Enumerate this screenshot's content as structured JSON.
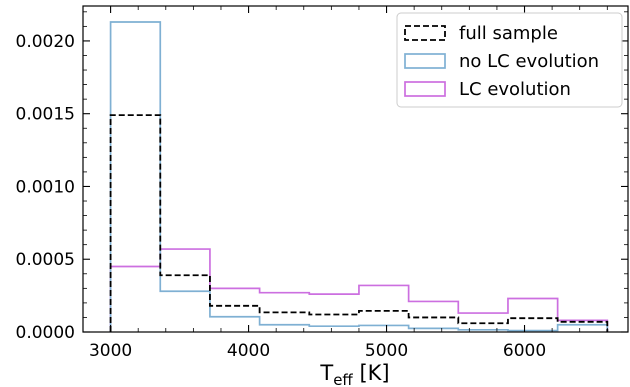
{
  "chart_data": {
    "type": "histogram-step",
    "xlabel_main": "T",
    "xlabel_sub": "eff",
    "xlabel_unit": " [K]",
    "ylabel": "",
    "xlim": [
      2800,
      6750
    ],
    "ylim": [
      0,
      0.00224
    ],
    "x_ticks": [
      3000,
      4000,
      5000,
      6000
    ],
    "x_tick_labels": [
      "3000",
      "4000",
      "5000",
      "6000"
    ],
    "y_ticks": [
      0,
      0.0005,
      0.001,
      0.0015,
      0.002
    ],
    "y_tick_labels": [
      "0.0000",
      "0.0005",
      "0.0010",
      "0.0015",
      "0.0020"
    ],
    "bin_edges": [
      3000,
      3360,
      3720,
      4080,
      4440,
      4800,
      5160,
      5520,
      5880,
      6240,
      6600
    ],
    "legend_position": "top-right",
    "series": [
      {
        "name": "full sample",
        "style": "dashed",
        "color": "#000000",
        "values": [
          0.00149,
          0.00039,
          0.00018,
          0.000135,
          0.00012,
          0.000145,
          0.0001,
          6e-05,
          9.5e-05,
          7e-05
        ]
      },
      {
        "name": "no LC evolution",
        "style": "solid",
        "color": "#7fb0d3",
        "values": [
          0.00213,
          0.00028,
          0.000105,
          5e-05,
          4e-05,
          4.5e-05,
          2.5e-05,
          1.5e-05,
          1e-05,
          5e-05
        ]
      },
      {
        "name": "LC evolution",
        "style": "solid",
        "color": "#cc6fe0",
        "values": [
          0.00045,
          0.00057,
          0.0003,
          0.00027,
          0.00026,
          0.00032,
          0.00021,
          0.00013,
          0.00023,
          8e-05
        ]
      }
    ]
  }
}
